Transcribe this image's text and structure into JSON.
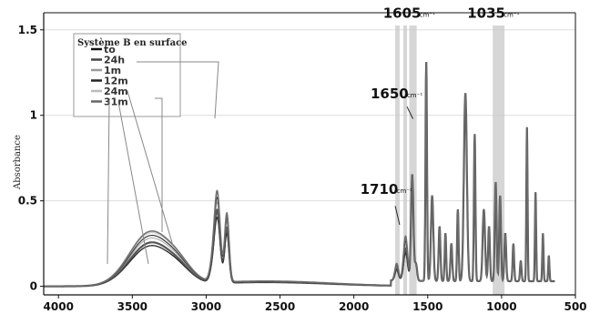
{
  "chart_data": {
    "type": "line",
    "ylabel": "Absorbance",
    "xlim": [
      4100,
      500
    ],
    "ylim": [
      -0.05,
      1.6
    ],
    "x_ticks": [
      4000,
      3500,
      3000,
      2500,
      2000,
      1500,
      1000,
      500
    ],
    "x_tick_labels": [
      "4000",
      "3500",
      "3000",
      "2500",
      "2000",
      "1500",
      "1000",
      "500"
    ],
    "y_ticks": [
      0,
      0.5,
      1,
      1.5
    ],
    "y_tick_labels": [
      "0",
      "0.5",
      "1",
      "1.5"
    ],
    "grid": true,
    "legend": {
      "title": "Système B en surface",
      "placement": "top-left",
      "entries": [
        "to",
        "24h",
        "1m",
        "12m",
        "24m",
        "31m"
      ]
    },
    "bands": [
      {
        "from": 1720,
        "to": 1690
      },
      {
        "from": 1665,
        "to": 1640
      },
      {
        "from": 1625,
        "to": 1575
      },
      {
        "from": 1060,
        "to": 980
      }
    ],
    "annotations": [
      {
        "main": "1605",
        "unit": "cm⁻¹",
        "x": 1605,
        "y": 1.57
      },
      {
        "main": "1035",
        "unit": "cm⁻¹",
        "x": 1035,
        "y": 1.57
      },
      {
        "main": "1650",
        "unit": "cm⁻¹",
        "x": 1690,
        "y": 1.1
      },
      {
        "main": "1710",
        "unit": "cm⁻¹",
        "x": 1760,
        "y": 0.54
      }
    ],
    "series": [
      {
        "color": "#111111",
        "oh_scale": 0.76,
        "ch_scale": 0.72,
        "carbonyl_scale": 0.62,
        "width": 1.3
      },
      {
        "color": "#444444",
        "oh_scale": 0.82,
        "ch_scale": 0.8,
        "carbonyl_scale": 0.72,
        "width": 2.2
      },
      {
        "color": "#9a9a9a",
        "oh_scale": 0.9,
        "ch_scale": 0.88,
        "carbonyl_scale": 0.82,
        "width": 1.0
      },
      {
        "color": "#222222",
        "oh_scale": 0.95,
        "ch_scale": 0.93,
        "carbonyl_scale": 0.9,
        "width": 1.2
      },
      {
        "color": "#bbbbbb",
        "oh_scale": 1.0,
        "ch_scale": 0.97,
        "carbonyl_scale": 0.96,
        "width": 1.0
      },
      {
        "color": "#666666",
        "oh_scale": 1.03,
        "ch_scale": 1.0,
        "carbonyl_scale": 1.0,
        "width": 1.6
      }
    ]
  }
}
